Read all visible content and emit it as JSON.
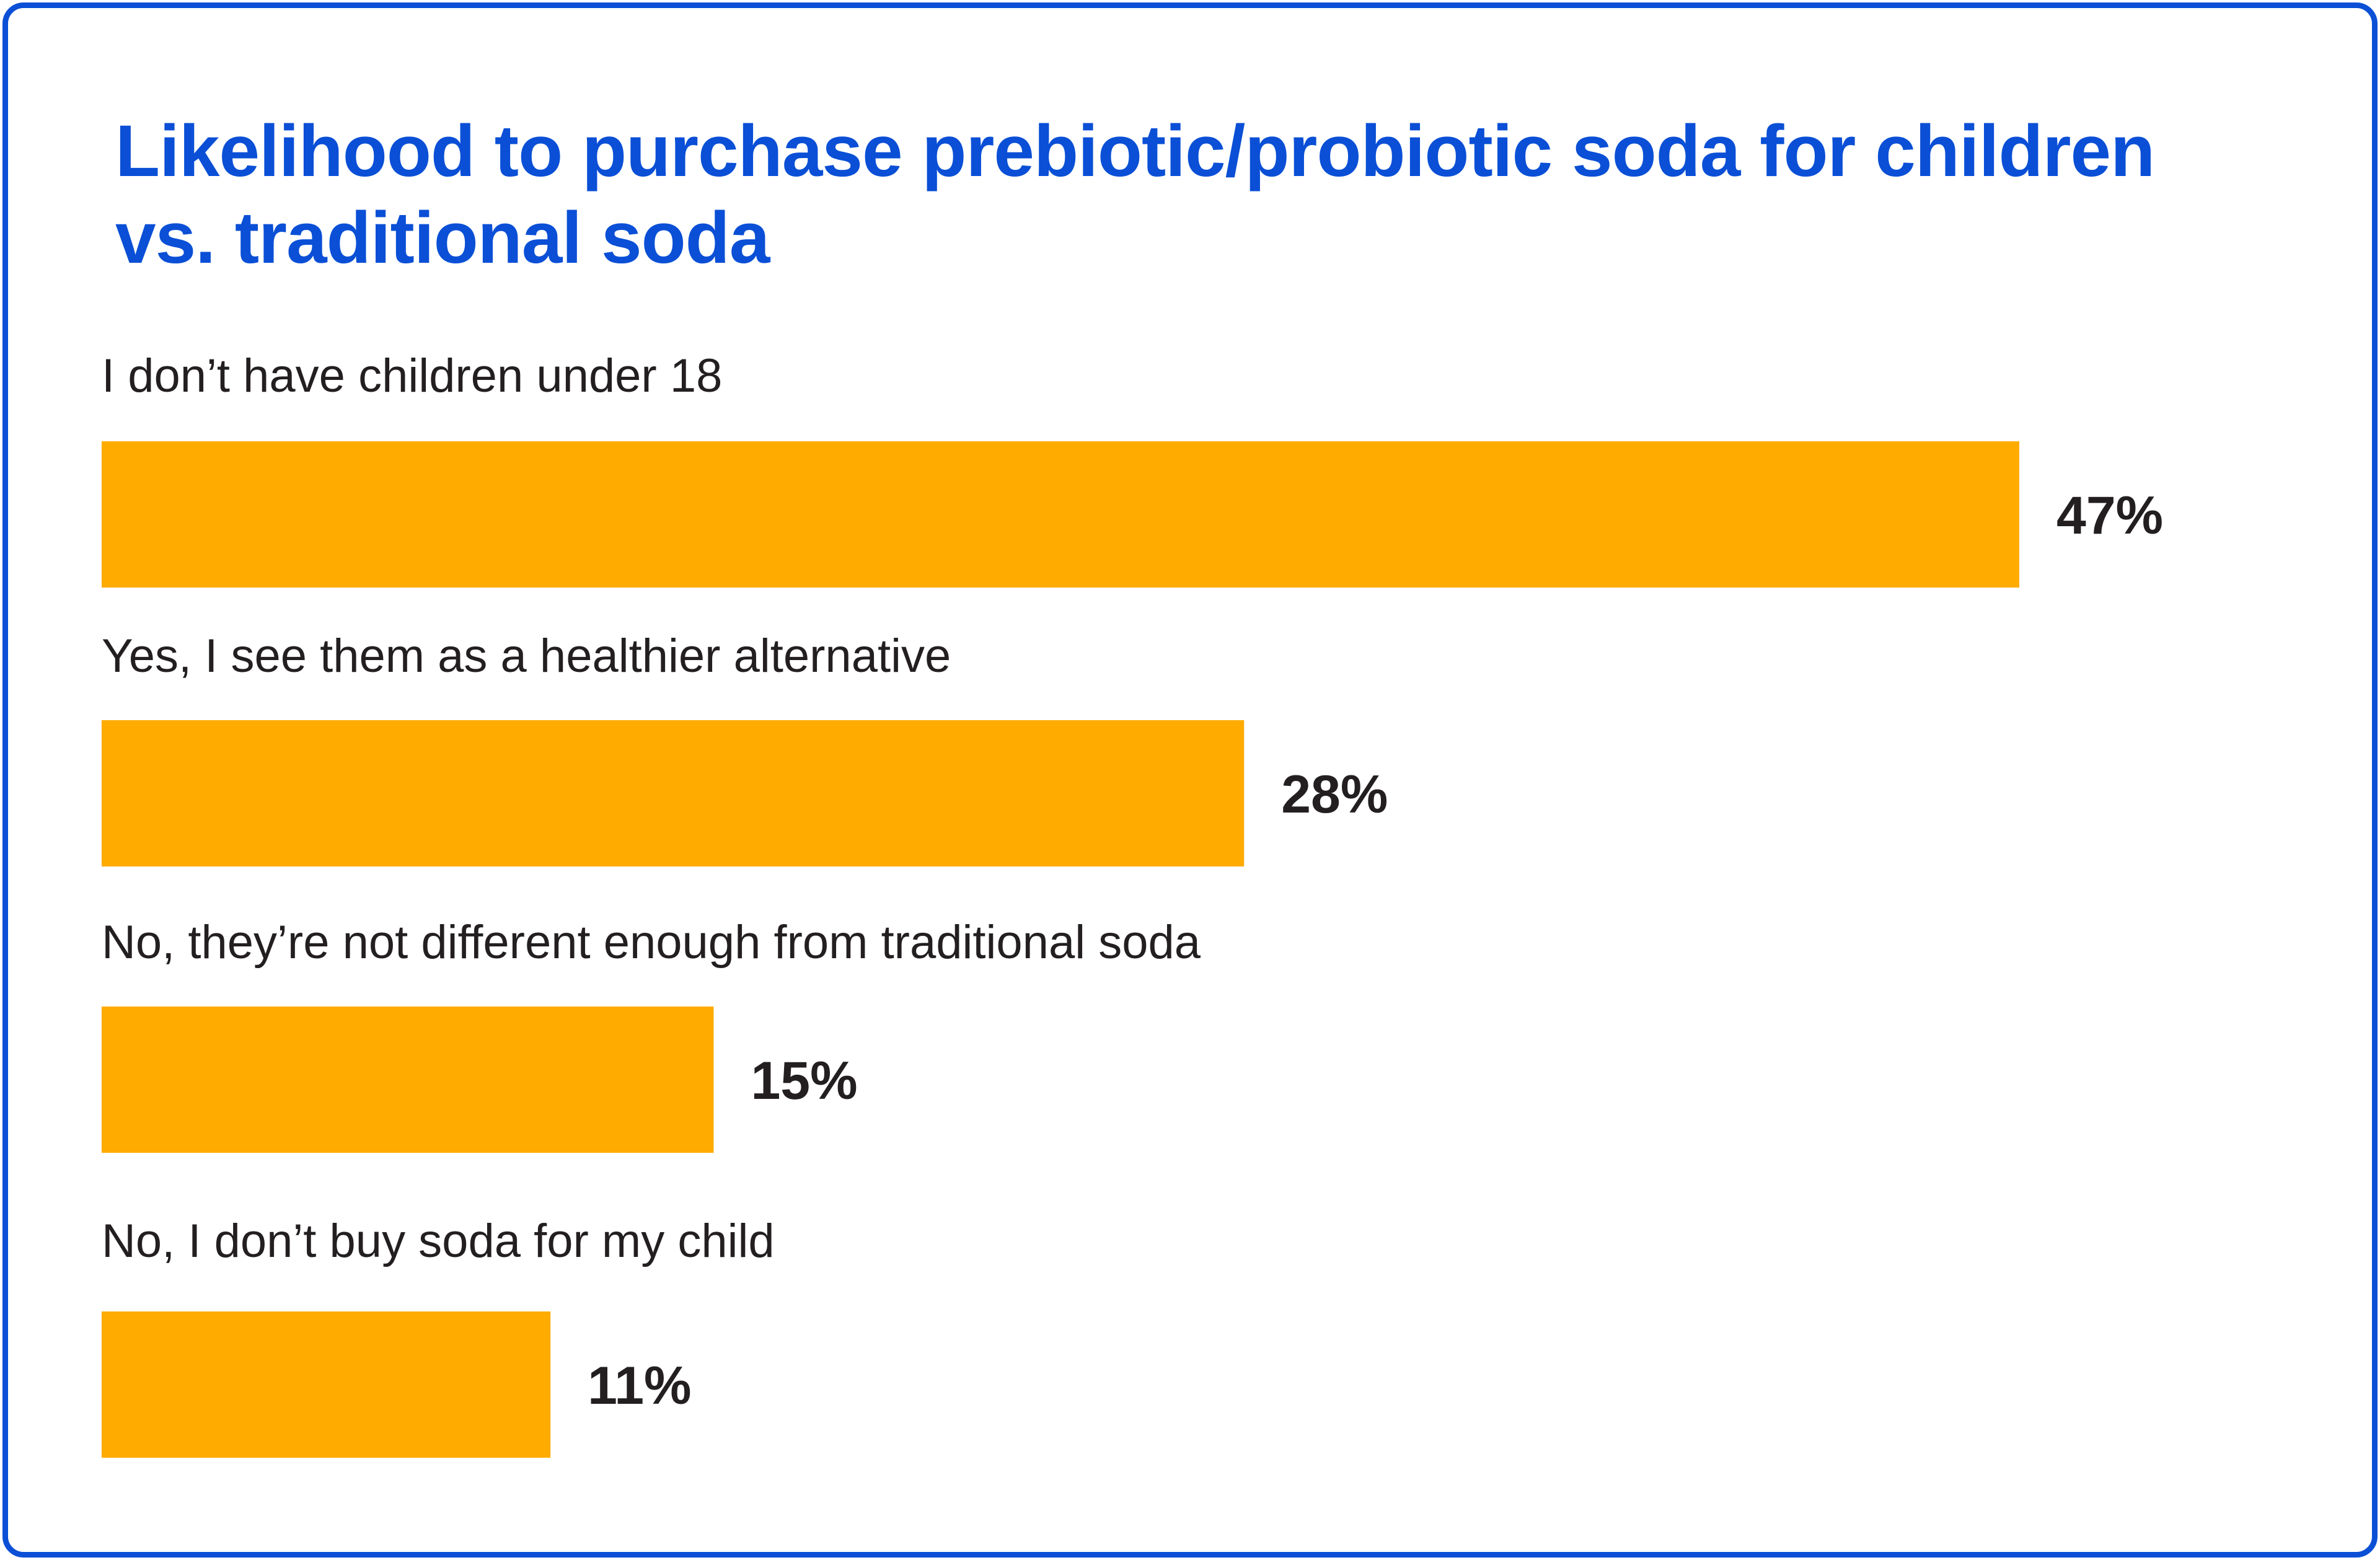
{
  "colors": {
    "border": "#0a4fd6",
    "title": "#0a4fd6",
    "bar": "#ffab00",
    "text": "#231f20"
  },
  "chart_data": {
    "type": "bar",
    "orientation": "horizontal",
    "title": "Likelihood to purchase prebiotic/probiotic soda for children vs. traditional soda",
    "categories": [
      "I don’t have children under 18",
      "Yes, I see them as a healthier alternative",
      "No, they’re not different enough from traditional soda",
      "No, I don’t buy soda for my child"
    ],
    "values": [
      47,
      28,
      15,
      11
    ],
    "value_labels": [
      "47%",
      "28%",
      "15%",
      "11%"
    ],
    "unit": "%",
    "xlim": [
      0,
      47
    ],
    "grid": false,
    "legend": "none"
  }
}
